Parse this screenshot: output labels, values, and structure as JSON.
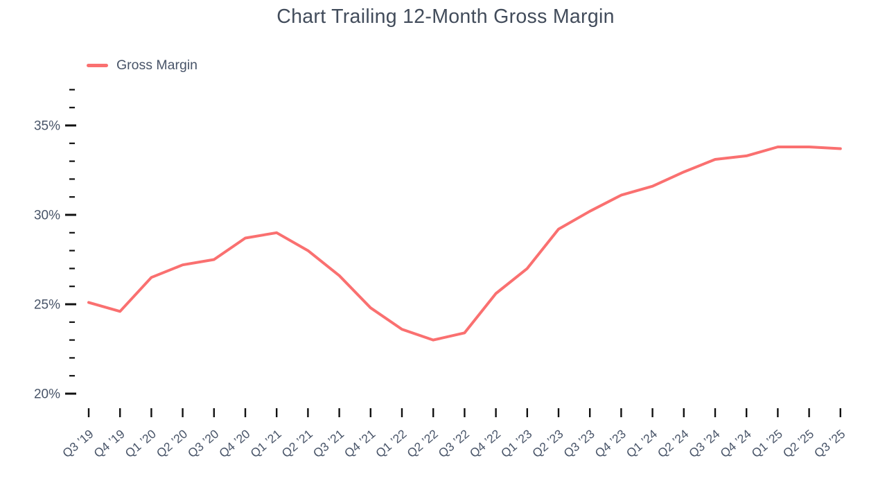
{
  "chart_data": {
    "type": "line",
    "title": "Chart Trailing 12-Month Gross Margin",
    "legend_label": "Gross Margin",
    "legend_position": "top-left",
    "grid": false,
    "xlabel": "",
    "ylabel": "",
    "categories": [
      "Q3 ’19",
      "Q4 ’19",
      "Q1 ’20",
      "Q2 ’20",
      "Q3 ’20",
      "Q4 ’20",
      "Q1 ’21",
      "Q2 ’21",
      "Q3 ’21",
      "Q4 ’21",
      "Q1 ’22",
      "Q2 ’22",
      "Q3 ’22",
      "Q4 ’22",
      "Q1 ’23",
      "Q2 ’23",
      "Q3 ’23",
      "Q4 ’23",
      "Q1 ’24",
      "Q2 ’24",
      "Q3 ’24",
      "Q4 ’24",
      "Q1 ’25",
      "Q2 ’25",
      "Q3 ’25"
    ],
    "series": [
      {
        "name": "Gross Margin",
        "unit": "%",
        "values": [
          25.1,
          24.6,
          26.5,
          27.2,
          27.5,
          28.7,
          29.0,
          28.0,
          26.6,
          24.8,
          23.6,
          23.0,
          23.4,
          25.6,
          27.0,
          29.2,
          30.2,
          31.1,
          31.6,
          32.4,
          33.1,
          33.3,
          33.8,
          33.8,
          33.7
        ]
      }
    ],
    "ylim": [
      20,
      37
    ],
    "ytick_labels": [
      "20%",
      "25%",
      "30%",
      "35%"
    ],
    "ytick_values": [
      20,
      25,
      30,
      35
    ],
    "yminor_tick_values": [
      21,
      22,
      23,
      24,
      26,
      27,
      28,
      29,
      31,
      32,
      33,
      34,
      36,
      37
    ],
    "colors": {
      "line": "#FA7070",
      "text": "#485468",
      "title": "#424C5B",
      "tick": "#111111",
      "background": "#FFFFFF"
    }
  }
}
